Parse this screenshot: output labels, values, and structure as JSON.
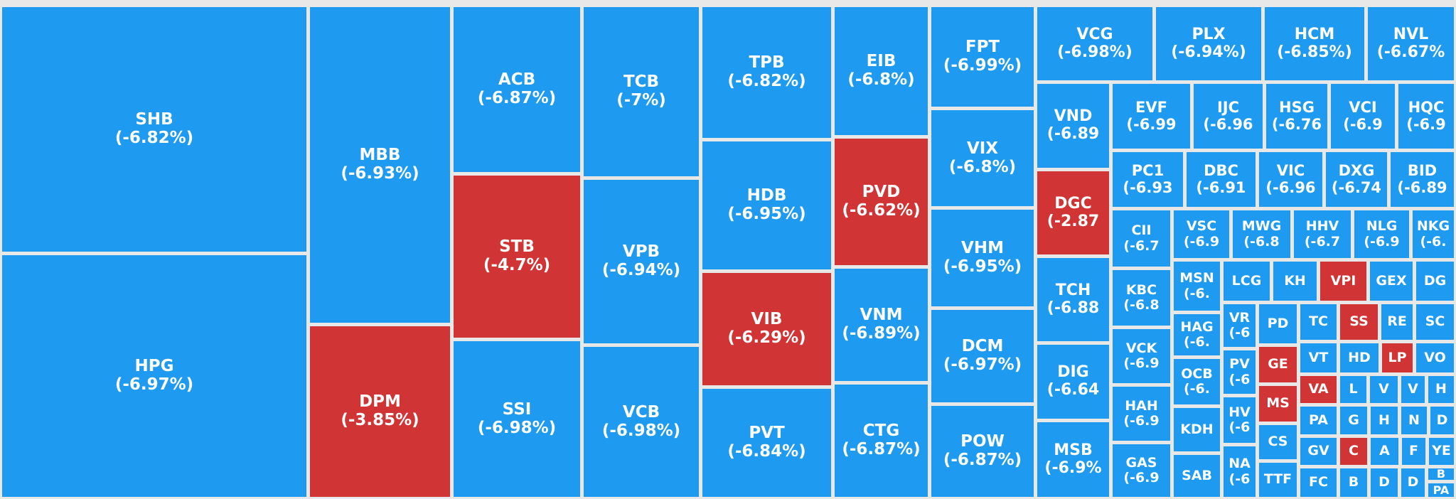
{
  "colors": {
    "decline": "#1e9bf0",
    "highlight": "#d13434",
    "border": "#e8e8e8"
  },
  "chart_data": {
    "type": "treemap",
    "tiles": [
      {
        "ticker": "SHB",
        "change": "(-6.82%)",
        "color": "decline"
      },
      {
        "ticker": "HPG",
        "change": "(-6.97%)",
        "color": "decline"
      },
      {
        "ticker": "MBB",
        "change": "(-6.93%)",
        "color": "decline"
      },
      {
        "ticker": "DPM",
        "change": "(-3.85%)",
        "color": "highlight"
      },
      {
        "ticker": "ACB",
        "change": "(-6.87%)",
        "color": "decline"
      },
      {
        "ticker": "STB",
        "change": "(-4.7%)",
        "color": "highlight"
      },
      {
        "ticker": "SSI",
        "change": "(-6.98%)",
        "color": "decline"
      },
      {
        "ticker": "TCB",
        "change": "(-7%)",
        "color": "decline"
      },
      {
        "ticker": "VPB",
        "change": "(-6.94%)",
        "color": "decline"
      },
      {
        "ticker": "VCB",
        "change": "(-6.98%)",
        "color": "decline"
      },
      {
        "ticker": "TPB",
        "change": "(-6.82%)",
        "color": "decline"
      },
      {
        "ticker": "HDB",
        "change": "(-6.95%)",
        "color": "decline"
      },
      {
        "ticker": "VIB",
        "change": "(-6.29%)",
        "color": "highlight"
      },
      {
        "ticker": "PVT",
        "change": "(-6.84%)",
        "color": "decline"
      },
      {
        "ticker": "EIB",
        "change": "(-6.8%)",
        "color": "decline"
      },
      {
        "ticker": "PVD",
        "change": "(-6.62%)",
        "color": "highlight"
      },
      {
        "ticker": "VNM",
        "change": "(-6.89%)",
        "color": "decline"
      },
      {
        "ticker": "CTG",
        "change": "(-6.87%)",
        "color": "decline"
      },
      {
        "ticker": "FPT",
        "change": "(-6.99%)",
        "color": "decline"
      },
      {
        "ticker": "VIX",
        "change": "(-6.8%)",
        "color": "decline"
      },
      {
        "ticker": "VHM",
        "change": "(-6.95%)",
        "color": "decline"
      },
      {
        "ticker": "DCM",
        "change": "(-6.97%)",
        "color": "decline"
      },
      {
        "ticker": "POW",
        "change": "(-6.87%)",
        "color": "decline"
      },
      {
        "ticker": "VCG",
        "change": "(-6.98%)",
        "color": "decline"
      },
      {
        "ticker": "PLX",
        "change": "(-6.94%)",
        "color": "decline"
      },
      {
        "ticker": "HCM",
        "change": "(-6.85%)",
        "color": "decline"
      },
      {
        "ticker": "NVL",
        "change": "(-6.67%",
        "color": "decline"
      },
      {
        "ticker": "VND",
        "change": "(-6.89",
        "color": "decline"
      },
      {
        "ticker": "DGC",
        "change": "(-2.87",
        "color": "highlight"
      },
      {
        "ticker": "TCH",
        "change": "(-6.88",
        "color": "decline"
      },
      {
        "ticker": "DIG",
        "change": "(-6.64",
        "color": "decline"
      },
      {
        "ticker": "MSB",
        "change": "(-6.9%",
        "color": "decline"
      },
      {
        "ticker": "EVF",
        "change": "(-6.99",
        "color": "decline"
      },
      {
        "ticker": "IJC",
        "change": "(-6.96",
        "color": "decline"
      },
      {
        "ticker": "HSG",
        "change": "(-6.76",
        "color": "decline"
      },
      {
        "ticker": "VCI",
        "change": "(-6.9",
        "color": "decline"
      },
      {
        "ticker": "HQC",
        "change": "(-6.9",
        "color": "decline"
      },
      {
        "ticker": "PC1",
        "change": "(-6.93",
        "color": "decline"
      },
      {
        "ticker": "DBC",
        "change": "(-6.91",
        "color": "decline"
      },
      {
        "ticker": "VIC",
        "change": "(-6.96",
        "color": "decline"
      },
      {
        "ticker": "DXG",
        "change": "(-6.74",
        "color": "decline"
      },
      {
        "ticker": "BID",
        "change": "(-6.89",
        "color": "decline"
      },
      {
        "ticker": "CII",
        "change": "(-6.7",
        "color": "decline"
      },
      {
        "ticker": "KBC",
        "change": "(-6.8",
        "color": "decline"
      },
      {
        "ticker": "VCK",
        "change": "(-6.9",
        "color": "decline"
      },
      {
        "ticker": "HAH",
        "change": "(-6.9",
        "color": "decline"
      },
      {
        "ticker": "GAS",
        "change": "(-6.9",
        "color": "decline"
      },
      {
        "ticker": "VSC",
        "change": "(-6.9",
        "color": "decline"
      },
      {
        "ticker": "MWG",
        "change": "(-6.8",
        "color": "decline"
      },
      {
        "ticker": "HHV",
        "change": "(-6.7",
        "color": "decline"
      },
      {
        "ticker": "NLG",
        "change": "(-6.9",
        "color": "decline"
      },
      {
        "ticker": "NKG",
        "change": "(-6.",
        "color": "decline"
      },
      {
        "ticker": "MSN",
        "change": "(-6.",
        "color": "decline"
      },
      {
        "ticker": "LCG",
        "change": "",
        "color": "decline"
      },
      {
        "ticker": "KH",
        "change": "",
        "color": "decline"
      },
      {
        "ticker": "VPI",
        "change": "",
        "color": "highlight"
      },
      {
        "ticker": "GEX",
        "change": "",
        "color": "decline"
      },
      {
        "ticker": "DG",
        "change": "",
        "color": "decline"
      },
      {
        "ticker": "HAG",
        "change": "(-6.",
        "color": "decline"
      },
      {
        "ticker": "OCB",
        "change": "(-6.",
        "color": "decline"
      },
      {
        "ticker": "KDH",
        "change": "",
        "color": "decline"
      },
      {
        "ticker": "SAB",
        "change": "",
        "color": "decline"
      },
      {
        "ticker": "VR",
        "change": "(-6",
        "color": "decline"
      },
      {
        "ticker": "PV",
        "change": "(-6",
        "color": "decline"
      },
      {
        "ticker": "HV",
        "change": "(-6",
        "color": "decline"
      },
      {
        "ticker": "NA",
        "change": "(-6",
        "color": "decline"
      },
      {
        "ticker": "PD",
        "change": "",
        "color": "decline"
      },
      {
        "ticker": "GE",
        "change": "",
        "color": "highlight"
      },
      {
        "ticker": "MS",
        "change": "",
        "color": "highlight"
      },
      {
        "ticker": "CS",
        "change": "",
        "color": "decline"
      },
      {
        "ticker": "TTF",
        "change": "",
        "color": "decline"
      },
      {
        "ticker": "TC",
        "change": "",
        "color": "decline"
      },
      {
        "ticker": "SS",
        "change": "",
        "color": "highlight"
      },
      {
        "ticker": "RE",
        "change": "",
        "color": "decline"
      },
      {
        "ticker": "SC",
        "change": "",
        "color": "decline"
      },
      {
        "ticker": "VT",
        "change": "",
        "color": "decline"
      },
      {
        "ticker": "HD",
        "change": "",
        "color": "decline"
      },
      {
        "ticker": "LP",
        "change": "",
        "color": "highlight"
      },
      {
        "ticker": "VO",
        "change": "",
        "color": "decline"
      },
      {
        "ticker": "VA",
        "change": "",
        "color": "highlight"
      },
      {
        "ticker": "L",
        "change": "",
        "color": "decline"
      },
      {
        "ticker": "V",
        "change": "",
        "color": "decline"
      },
      {
        "ticker": "V",
        "change": "",
        "color": "decline"
      },
      {
        "ticker": "H",
        "change": "",
        "color": "decline"
      },
      {
        "ticker": "PA",
        "change": "",
        "color": "decline"
      },
      {
        "ticker": "G",
        "change": "",
        "color": "decline"
      },
      {
        "ticker": "H",
        "change": "",
        "color": "decline"
      },
      {
        "ticker": "N",
        "change": "",
        "color": "decline"
      },
      {
        "ticker": "D",
        "change": "",
        "color": "decline"
      },
      {
        "ticker": "GV",
        "change": "",
        "color": "decline"
      },
      {
        "ticker": "C",
        "change": "",
        "color": "highlight"
      },
      {
        "ticker": "A",
        "change": "",
        "color": "decline"
      },
      {
        "ticker": "F",
        "change": "",
        "color": "decline"
      },
      {
        "ticker": "YE",
        "change": "",
        "color": "decline"
      },
      {
        "ticker": "FC",
        "change": "",
        "color": "decline"
      },
      {
        "ticker": "B",
        "change": "",
        "color": "decline"
      },
      {
        "ticker": "D",
        "change": "",
        "color": "decline"
      },
      {
        "ticker": "D",
        "change": "",
        "color": "decline"
      },
      {
        "ticker": "B",
        "change": "",
        "color": "decline"
      },
      {
        "ticker": "PA",
        "change": "",
        "color": "decline"
      }
    ]
  }
}
